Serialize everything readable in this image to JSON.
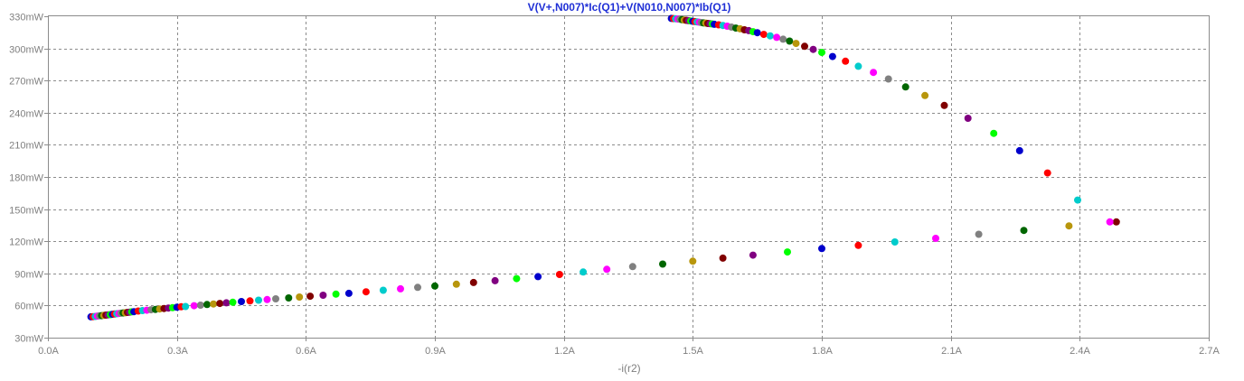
{
  "chart_data": {
    "type": "scatter",
    "title": "V(V+,N007)*Ic(Q1)+V(N010,N007)*Ib(Q1)",
    "xlabel": "-i(r2)",
    "ylabel": "",
    "xlim": [
      0,
      2.7
    ],
    "ylim": [
      30,
      330
    ],
    "x_ticks": [
      0,
      0.3,
      0.6,
      0.9,
      1.2,
      1.5,
      1.8,
      2.1,
      2.4,
      2.7
    ],
    "x_tick_labels": [
      "0.0A",
      "0.3A",
      "0.6A",
      "0.9A",
      "1.2A",
      "1.5A",
      "1.8A",
      "2.1A",
      "2.4A",
      "2.7A"
    ],
    "y_ticks": [
      30,
      60,
      90,
      120,
      150,
      180,
      210,
      240,
      270,
      300,
      330
    ],
    "y_tick_labels": [
      "30mW",
      "60mW",
      "90mW",
      "120mW",
      "150mW",
      "180mW",
      "210mW",
      "240mW",
      "270mW",
      "300mW",
      "330mW"
    ],
    "grid": true,
    "point_colors": [
      "#0000cc",
      "#ff0000",
      "#00cccc",
      "#ff00ff",
      "#808080",
      "#006600",
      "#b8960c",
      "#800000",
      "#800080",
      "#00ff00"
    ],
    "lower_branch": {
      "x": [
        0.1,
        0.105,
        0.11,
        0.115,
        0.12,
        0.125,
        0.13,
        0.135,
        0.14,
        0.145,
        0.15,
        0.155,
        0.16,
        0.165,
        0.17,
        0.175,
        0.18,
        0.185,
        0.19,
        0.195,
        0.2,
        0.21,
        0.22,
        0.23,
        0.24,
        0.25,
        0.26,
        0.27,
        0.28,
        0.29,
        0.3,
        0.31,
        0.32,
        0.34,
        0.355,
        0.37,
        0.385,
        0.4,
        0.415,
        0.43,
        0.45,
        0.47,
        0.49,
        0.51,
        0.53,
        0.56,
        0.585,
        0.61,
        0.64,
        0.67,
        0.7,
        0.74,
        0.78,
        0.82,
        0.86,
        0.9,
        0.95,
        0.99,
        1.04,
        1.09,
        1.14,
        1.19,
        1.245,
        1.3,
        1.36,
        1.43,
        1.5,
        1.57,
        1.64,
        1.72,
        1.8,
        1.885,
        1.97,
        2.065,
        2.165,
        2.27,
        2.375,
        2.485
      ],
      "y": [
        49.5,
        49.6,
        49.8,
        50.1,
        50.4,
        50.6,
        50.8,
        51.1,
        51.3,
        51.5,
        51.8,
        52.1,
        52.3,
        52.6,
        52.8,
        53.1,
        53.3,
        53.6,
        53.8,
        54.1,
        54.3,
        54.9,
        55.3,
        55.6,
        56,
        56.4,
        56.8,
        57.2,
        57.6,
        58,
        58.4,
        58.8,
        59.1,
        59.8,
        60.3,
        60.9,
        61.4,
        61.9,
        62.5,
        63,
        63.7,
        64.3,
        65,
        65.6,
        66.2,
        67.1,
        67.9,
        68.7,
        69.6,
        70.6,
        71.4,
        72.8,
        74.2,
        75.6,
        76.9,
        78.2,
        79.9,
        81.5,
        83.2,
        85.1,
        87,
        89,
        91.3,
        93.8,
        96.3,
        98.7,
        101.4,
        104.2,
        107,
        110,
        113.2,
        116.1,
        119.3,
        122.7,
        126.5,
        130.1,
        134.3,
        138
      ]
    },
    "upper_branch": {
      "x": [
        1.45,
        1.455,
        1.46,
        1.465,
        1.47,
        1.475,
        1.48,
        1.485,
        1.49,
        1.495,
        1.5,
        1.505,
        1.51,
        1.515,
        1.52,
        1.525,
        1.53,
        1.535,
        1.54,
        1.545,
        1.55,
        1.56,
        1.57,
        1.58,
        1.59,
        1.6,
        1.61,
        1.62,
        1.63,
        1.64,
        1.65,
        1.665,
        1.68,
        1.695,
        1.71,
        1.725,
        1.74,
        1.76,
        1.78,
        1.8,
        1.825,
        1.855,
        1.885,
        1.92,
        1.955,
        1.995,
        2.04,
        2.085,
        2.14,
        2.2,
        2.26,
        2.325,
        2.395,
        2.47
      ],
      "y": [
        328,
        327.8,
        327.6,
        327.4,
        327.1,
        326.8,
        326.5,
        326.2,
        325.9,
        325.6,
        325.3,
        325,
        324.7,
        324.4,
        324.1,
        323.8,
        323.6,
        323.3,
        323.1,
        322.8,
        322.5,
        322,
        321.4,
        320.7,
        319.9,
        319,
        318.3,
        317.4,
        316.6,
        315.6,
        314.7,
        313.1,
        311.7,
        310.3,
        308.6,
        306.8,
        304.6,
        301.9,
        299.1,
        296.2,
        292.4,
        288,
        283.3,
        277.6,
        271.4,
        264,
        256,
        246.7,
        234.8,
        220.7,
        204.5,
        183.7,
        158.4,
        138
      ]
    }
  }
}
